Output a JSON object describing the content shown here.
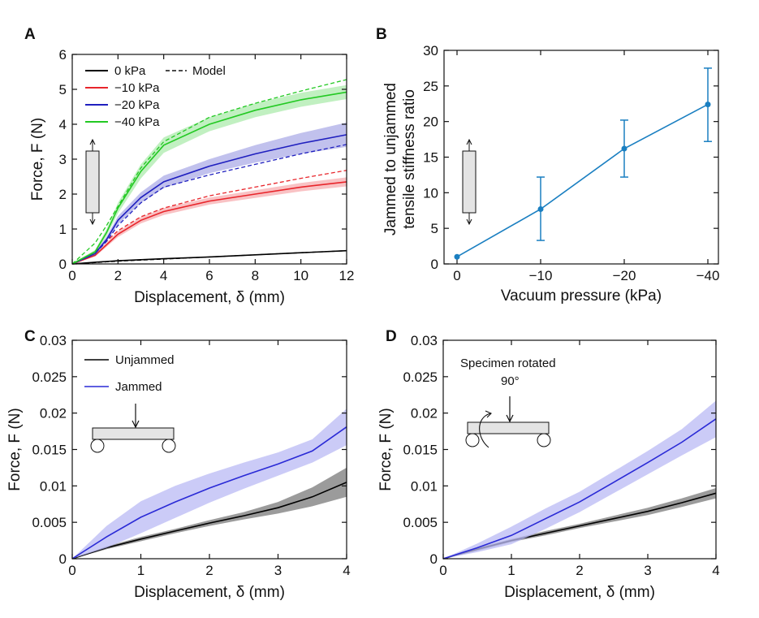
{
  "chart_data": [
    {
      "panel": "A",
      "type": "line",
      "xlabel": "Displacement, δ (mm)",
      "ylabel": "Force, F (N)",
      "xlim": [
        0,
        12
      ],
      "ylim": [
        0,
        6
      ],
      "xticks": [
        "0",
        "2",
        "4",
        "6",
        "8",
        "10",
        "12"
      ],
      "yticks": [
        "0",
        "1",
        "2",
        "3",
        "4",
        "5",
        "6"
      ],
      "legend": [
        "0 kPa",
        "−10 kPa",
        "−20 kPa",
        "−40 kPa",
        "Model"
      ],
      "legend_position": "top-left",
      "x": [
        0,
        1,
        1.5,
        2,
        3,
        4,
        6,
        8,
        10,
        12
      ],
      "series": [
        {
          "name": "0 kPa",
          "color": "#000000",
          "values": [
            0,
            0.05,
            0.07,
            0.09,
            0.12,
            0.15,
            0.2,
            0.26,
            0.32,
            0.38
          ],
          "band": [
            0.01,
            0.01,
            0.01,
            0.01,
            0.01,
            0.01,
            0.01,
            0.01,
            0.01,
            0.01
          ],
          "model": [
            0,
            0.04,
            0.06,
            0.08,
            0.11,
            0.14,
            0.2,
            0.26,
            0.32,
            0.38
          ]
        },
        {
          "name": "−10 kPa",
          "color": "#e8252b",
          "values": [
            0,
            0.25,
            0.55,
            0.85,
            1.25,
            1.5,
            1.8,
            2.0,
            2.2,
            2.35
          ],
          "band": [
            0.02,
            0.04,
            0.06,
            0.08,
            0.09,
            0.1,
            0.1,
            0.11,
            0.12,
            0.13
          ],
          "model": [
            0,
            0.35,
            0.65,
            0.95,
            1.35,
            1.6,
            1.95,
            2.2,
            2.45,
            2.68
          ]
        },
        {
          "name": "−20 kPa",
          "color": "#1f1fbf",
          "values": [
            0,
            0.3,
            0.7,
            1.25,
            1.9,
            2.35,
            2.8,
            3.15,
            3.45,
            3.7
          ],
          "band": [
            0.02,
            0.05,
            0.08,
            0.12,
            0.15,
            0.18,
            0.2,
            0.25,
            0.3,
            0.35
          ],
          "model": [
            0,
            0.3,
            0.65,
            1.1,
            1.75,
            2.2,
            2.55,
            2.85,
            3.15,
            3.42
          ]
        },
        {
          "name": "−40 kPa",
          "color": "#22c922",
          "values": [
            0,
            0.35,
            0.9,
            1.6,
            2.65,
            3.4,
            4.0,
            4.4,
            4.7,
            4.92
          ],
          "band": [
            0.02,
            0.05,
            0.1,
            0.15,
            0.2,
            0.22,
            0.2,
            0.2,
            0.2,
            0.2
          ],
          "model": [
            0,
            0.6,
            1.1,
            1.65,
            2.75,
            3.5,
            4.2,
            4.6,
            4.95,
            5.28
          ]
        }
      ],
      "model_label": "Model"
    },
    {
      "panel": "B",
      "type": "line",
      "xlabel": "Vacuum pressure (kPa)",
      "ylabel_lines": [
        "Jammed to unjammed",
        "tensile stiffness ratio"
      ],
      "categories": [
        "0",
        "−10",
        "−20",
        "−40"
      ],
      "ylim": [
        0,
        30
      ],
      "yticks": [
        "0",
        "5",
        "10",
        "15",
        "20",
        "25",
        "30"
      ],
      "color": "#1a7fc1",
      "values": [
        1,
        7.7,
        16.2,
        22.4
      ],
      "err_low": [
        1,
        3.3,
        12.2,
        17.2
      ],
      "err_high": [
        1,
        12.2,
        20.2,
        27.5
      ]
    },
    {
      "panel": "C",
      "type": "line",
      "xlabel": "Displacement, δ (mm)",
      "ylabel": "Force, F (N)",
      "xlim": [
        0,
        4
      ],
      "ylim": [
        0,
        0.03
      ],
      "xticks": [
        "0",
        "1",
        "2",
        "3",
        "4"
      ],
      "yticks": [
        "0",
        "0.005",
        "0.01",
        "0.015",
        "0.02",
        "0.025",
        "0.03"
      ],
      "legend_position": "top-left",
      "x": [
        0,
        0.5,
        1,
        1.5,
        2,
        2.5,
        3,
        3.5,
        4
      ],
      "series": [
        {
          "name": "Unjammed",
          "color": "#000000",
          "band_color": "#7a7a7a",
          "values": [
            0,
            0.0015,
            0.0027,
            0.0038,
            0.0049,
            0.0059,
            0.007,
            0.0085,
            0.0105
          ],
          "band": [
            0,
            0.0002,
            0.0003,
            0.0003,
            0.0004,
            0.0005,
            0.0008,
            0.0013,
            0.002
          ]
        },
        {
          "name": "Jammed",
          "color": "#2a2ad6",
          "band_color": "#b9b9f4",
          "values": [
            0,
            0.003,
            0.0057,
            0.0078,
            0.0097,
            0.0114,
            0.013,
            0.0148,
            0.0181
          ],
          "band": [
            0,
            0.0015,
            0.0022,
            0.0022,
            0.002,
            0.0018,
            0.0016,
            0.0016,
            0.0025
          ]
        }
      ]
    },
    {
      "panel": "D",
      "type": "line",
      "xlabel": "Displacement, δ (mm)",
      "ylabel": "Force, F (N)",
      "xlim": [
        0,
        4
      ],
      "ylim": [
        0,
        0.03
      ],
      "xticks": [
        "0",
        "1",
        "2",
        "3",
        "4"
      ],
      "yticks": [
        "0",
        "0.005",
        "0.01",
        "0.015",
        "0.02",
        "0.025",
        "0.03"
      ],
      "annotation": [
        "Specimen rotated",
        "90°"
      ],
      "x": [
        0,
        0.5,
        1,
        1.5,
        2,
        2.5,
        3,
        3.5,
        4
      ],
      "series": [
        {
          "color": "#000000",
          "band_color": "#7a7a7a",
          "values": [
            0,
            0.0013,
            0.0025,
            0.0035,
            0.0045,
            0.0055,
            0.0065,
            0.0077,
            0.009
          ],
          "band": [
            0,
            0.0002,
            0.0002,
            0.0003,
            0.0003,
            0.0004,
            0.0005,
            0.0006,
            0.0007
          ]
        },
        {
          "color": "#2a2ad6",
          "band_color": "#b9b9f4",
          "values": [
            0,
            0.0015,
            0.0032,
            0.0055,
            0.0078,
            0.0105,
            0.0132,
            0.016,
            0.0192
          ],
          "band": [
            0,
            0.0006,
            0.0012,
            0.0014,
            0.0014,
            0.0015,
            0.0016,
            0.0018,
            0.0025
          ]
        }
      ]
    }
  ]
}
